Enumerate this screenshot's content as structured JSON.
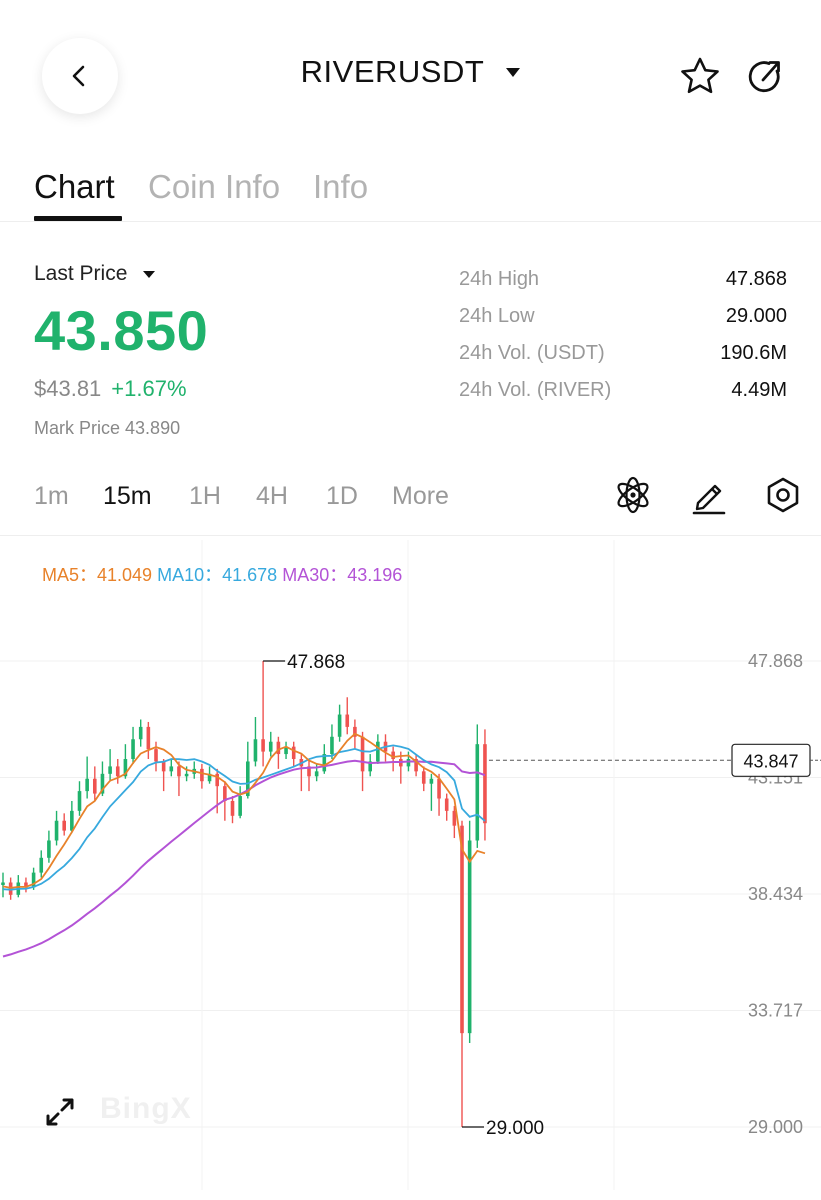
{
  "header": {
    "title": "RIVERUSDT"
  },
  "tabs": [
    {
      "label": "Chart"
    },
    {
      "label": "Coin Info"
    },
    {
      "label": "Info"
    }
  ],
  "price": {
    "label": "Last Price",
    "last": "43.850",
    "usd": "$43.81",
    "change": "+1.67%",
    "mark_label": "Mark Price",
    "mark": "43.890",
    "up_color": "#20b26c",
    "down_color": "#ef5350"
  },
  "stats": [
    {
      "label": "24h High",
      "value": "47.868"
    },
    {
      "label": "24h Low",
      "value": "29.000"
    },
    {
      "label": "24h Vol. (USDT)",
      "value": "190.6M"
    },
    {
      "label": "24h Vol. (RIVER)",
      "value": "4.49M"
    }
  ],
  "intervals": [
    {
      "label": "1m"
    },
    {
      "label": "15m",
      "active": true
    },
    {
      "label": "1H"
    },
    {
      "label": "4H"
    },
    {
      "label": "1D"
    },
    {
      "label": "More"
    }
  ],
  "tools": [
    "atom-indicator-icon",
    "pencil-draw-icon",
    "hexagon-settings-icon"
  ],
  "ma": {
    "ma5_label": "MA5：",
    "ma5_value": "41.049",
    "ma5_color": "#e8822a",
    "ma10_label": "MA10：",
    "ma10_value": "41.678",
    "ma10_color": "#37a9de",
    "ma30_label": "MA30：",
    "ma30_value": "43.196",
    "ma30_color": "#b353d6"
  },
  "watermark": "BingX",
  "chart_data": {
    "type": "candlestick",
    "y_ticks": [
      "47.868",
      "43.151",
      "38.434",
      "33.717",
      "29.000"
    ],
    "ylim": [
      29.0,
      47.868
    ],
    "high_marker": "47.868",
    "low_marker": "29.000",
    "current_price_tag": "43.847",
    "grid": true,
    "candles": [
      [
        38.8,
        38.9,
        38.3,
        39.3
      ],
      [
        38.9,
        38.4,
        38.2,
        39.1
      ],
      [
        38.4,
        38.9,
        38.3,
        39.2
      ],
      [
        38.9,
        38.7,
        38.5,
        39.1
      ],
      [
        38.7,
        39.3,
        38.6,
        39.5
      ],
      [
        39.3,
        39.9,
        39.1,
        40.2
      ],
      [
        39.9,
        40.6,
        39.7,
        41.0
      ],
      [
        40.6,
        41.4,
        40.4,
        41.8
      ],
      [
        41.4,
        41.0,
        40.8,
        41.7
      ],
      [
        41.0,
        41.8,
        40.9,
        42.2
      ],
      [
        41.8,
        42.6,
        41.6,
        43.0
      ],
      [
        42.6,
        43.1,
        42.3,
        44.0
      ],
      [
        43.1,
        42.5,
        42.2,
        43.6
      ],
      [
        42.5,
        43.3,
        42.4,
        43.8
      ],
      [
        43.3,
        43.6,
        43.0,
        44.3
      ],
      [
        43.6,
        43.2,
        42.9,
        43.9
      ],
      [
        43.2,
        43.9,
        43.1,
        44.5
      ],
      [
        43.9,
        44.7,
        43.7,
        45.2
      ],
      [
        44.7,
        45.2,
        44.4,
        45.5
      ],
      [
        45.2,
        44.3,
        43.9,
        45.4
      ],
      [
        44.3,
        43.8,
        43.4,
        44.6
      ],
      [
        43.8,
        43.4,
        42.6,
        43.9
      ],
      [
        43.4,
        43.6,
        43.2,
        43.9
      ],
      [
        43.6,
        43.2,
        42.4,
        43.8
      ],
      [
        43.2,
        43.3,
        43.0,
        43.6
      ],
      [
        43.3,
        43.5,
        43.1,
        43.8
      ],
      [
        43.5,
        43.0,
        42.7,
        43.7
      ],
      [
        43.0,
        43.3,
        42.9,
        43.6
      ],
      [
        43.3,
        42.8,
        41.7,
        43.5
      ],
      [
        42.8,
        42.2,
        41.4,
        43.0
      ],
      [
        42.2,
        41.6,
        41.3,
        42.4
      ],
      [
        41.6,
        42.4,
        41.5,
        42.8
      ],
      [
        42.4,
        43.8,
        42.3,
        44.6
      ],
      [
        43.8,
        44.7,
        43.6,
        45.6
      ],
      [
        44.7,
        44.2,
        43.6,
        47.868
      ],
      [
        44.2,
        44.6,
        44.0,
        45.0
      ],
      [
        44.6,
        44.1,
        43.5,
        44.8
      ],
      [
        44.1,
        44.4,
        43.9,
        44.6
      ],
      [
        44.4,
        43.9,
        43.6,
        44.6
      ],
      [
        43.9,
        43.6,
        42.6,
        44.1
      ],
      [
        43.6,
        43.2,
        42.6,
        43.9
      ],
      [
        43.2,
        43.4,
        43.0,
        43.7
      ],
      [
        43.4,
        44.1,
        43.3,
        44.5
      ],
      [
        44.1,
        44.8,
        43.9,
        45.3
      ],
      [
        44.8,
        45.7,
        44.6,
        46.1
      ],
      [
        45.7,
        45.2,
        44.9,
        46.4
      ],
      [
        45.2,
        44.8,
        44.3,
        45.5
      ],
      [
        44.8,
        43.4,
        42.6,
        45.0
      ],
      [
        43.4,
        43.8,
        43.2,
        44.1
      ],
      [
        43.8,
        44.6,
        43.7,
        44.9
      ],
      [
        44.6,
        44.2,
        43.8,
        44.9
      ],
      [
        44.2,
        43.9,
        43.4,
        44.4
      ],
      [
        43.9,
        43.6,
        42.9,
        44.2
      ],
      [
        43.6,
        43.9,
        43.4,
        44.2
      ],
      [
        43.9,
        43.4,
        43.2,
        44.1
      ],
      [
        43.4,
        42.9,
        42.6,
        43.6
      ],
      [
        42.9,
        43.1,
        41.8,
        43.3
      ],
      [
        43.1,
        42.3,
        41.6,
        43.3
      ],
      [
        42.3,
        41.8,
        41.4,
        42.5
      ],
      [
        41.8,
        41.2,
        40.7,
        42.0
      ],
      [
        41.2,
        32.8,
        29.0,
        41.4
      ],
      [
        32.8,
        40.6,
        32.4,
        41.4
      ],
      [
        40.6,
        44.5,
        40.3,
        45.3
      ],
      [
        44.5,
        41.3,
        40.6,
        45.1
      ]
    ]
  }
}
